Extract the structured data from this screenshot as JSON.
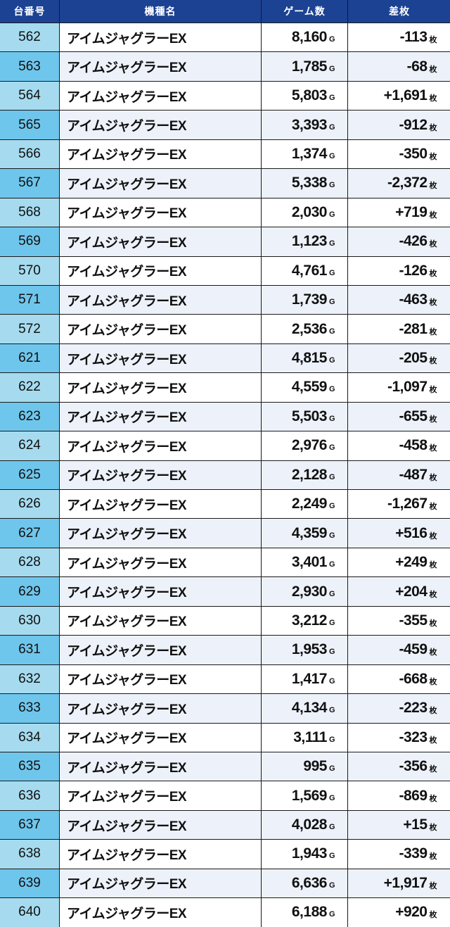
{
  "headers": {
    "no": "台番号",
    "model": "機種名",
    "games": "ゲーム数",
    "diff": "差枚"
  },
  "units": {
    "games": "G",
    "diff": "枚"
  },
  "colors": {
    "header": "#1c4293",
    "number_light": "#a6dbef",
    "number_dark": "#6fc6ec",
    "row_alt": "#edf2fa"
  },
  "rows": [
    {
      "no": "562",
      "model": "アイムジャグラーEX",
      "games": "8,160",
      "diff": "-113"
    },
    {
      "no": "563",
      "model": "アイムジャグラーEX",
      "games": "1,785",
      "diff": "-68"
    },
    {
      "no": "564",
      "model": "アイムジャグラーEX",
      "games": "5,803",
      "diff": "+1,691"
    },
    {
      "no": "565",
      "model": "アイムジャグラーEX",
      "games": "3,393",
      "diff": "-912"
    },
    {
      "no": "566",
      "model": "アイムジャグラーEX",
      "games": "1,374",
      "diff": "-350"
    },
    {
      "no": "567",
      "model": "アイムジャグラーEX",
      "games": "5,338",
      "diff": "-2,372"
    },
    {
      "no": "568",
      "model": "アイムジャグラーEX",
      "games": "2,030",
      "diff": "+719"
    },
    {
      "no": "569",
      "model": "アイムジャグラーEX",
      "games": "1,123",
      "diff": "-426"
    },
    {
      "no": "570",
      "model": "アイムジャグラーEX",
      "games": "4,761",
      "diff": "-126"
    },
    {
      "no": "571",
      "model": "アイムジャグラーEX",
      "games": "1,739",
      "diff": "-463"
    },
    {
      "no": "572",
      "model": "アイムジャグラーEX",
      "games": "2,536",
      "diff": "-281"
    },
    {
      "no": "621",
      "model": "アイムジャグラーEX",
      "games": "4,815",
      "diff": "-205"
    },
    {
      "no": "622",
      "model": "アイムジャグラーEX",
      "games": "4,559",
      "diff": "-1,097"
    },
    {
      "no": "623",
      "model": "アイムジャグラーEX",
      "games": "5,503",
      "diff": "-655"
    },
    {
      "no": "624",
      "model": "アイムジャグラーEX",
      "games": "2,976",
      "diff": "-458"
    },
    {
      "no": "625",
      "model": "アイムジャグラーEX",
      "games": "2,128",
      "diff": "-487"
    },
    {
      "no": "626",
      "model": "アイムジャグラーEX",
      "games": "2,249",
      "diff": "-1,267"
    },
    {
      "no": "627",
      "model": "アイムジャグラーEX",
      "games": "4,359",
      "diff": "+516"
    },
    {
      "no": "628",
      "model": "アイムジャグラーEX",
      "games": "3,401",
      "diff": "+249"
    },
    {
      "no": "629",
      "model": "アイムジャグラーEX",
      "games": "2,930",
      "diff": "+204"
    },
    {
      "no": "630",
      "model": "アイムジャグラーEX",
      "games": "3,212",
      "diff": "-355"
    },
    {
      "no": "631",
      "model": "アイムジャグラーEX",
      "games": "1,953",
      "diff": "-459"
    },
    {
      "no": "632",
      "model": "アイムジャグラーEX",
      "games": "1,417",
      "diff": "-668"
    },
    {
      "no": "633",
      "model": "アイムジャグラーEX",
      "games": "4,134",
      "diff": "-223"
    },
    {
      "no": "634",
      "model": "アイムジャグラーEX",
      "games": "3,111",
      "diff": "-323"
    },
    {
      "no": "635",
      "model": "アイムジャグラーEX",
      "games": "995",
      "diff": "-356"
    },
    {
      "no": "636",
      "model": "アイムジャグラーEX",
      "games": "1,569",
      "diff": "-869"
    },
    {
      "no": "637",
      "model": "アイムジャグラーEX",
      "games": "4,028",
      "diff": "+15"
    },
    {
      "no": "638",
      "model": "アイムジャグラーEX",
      "games": "1,943",
      "diff": "-339"
    },
    {
      "no": "639",
      "model": "アイムジャグラーEX",
      "games": "6,636",
      "diff": "+1,917"
    },
    {
      "no": "640",
      "model": "アイムジャグラーEX",
      "games": "6,188",
      "diff": "+920"
    }
  ]
}
